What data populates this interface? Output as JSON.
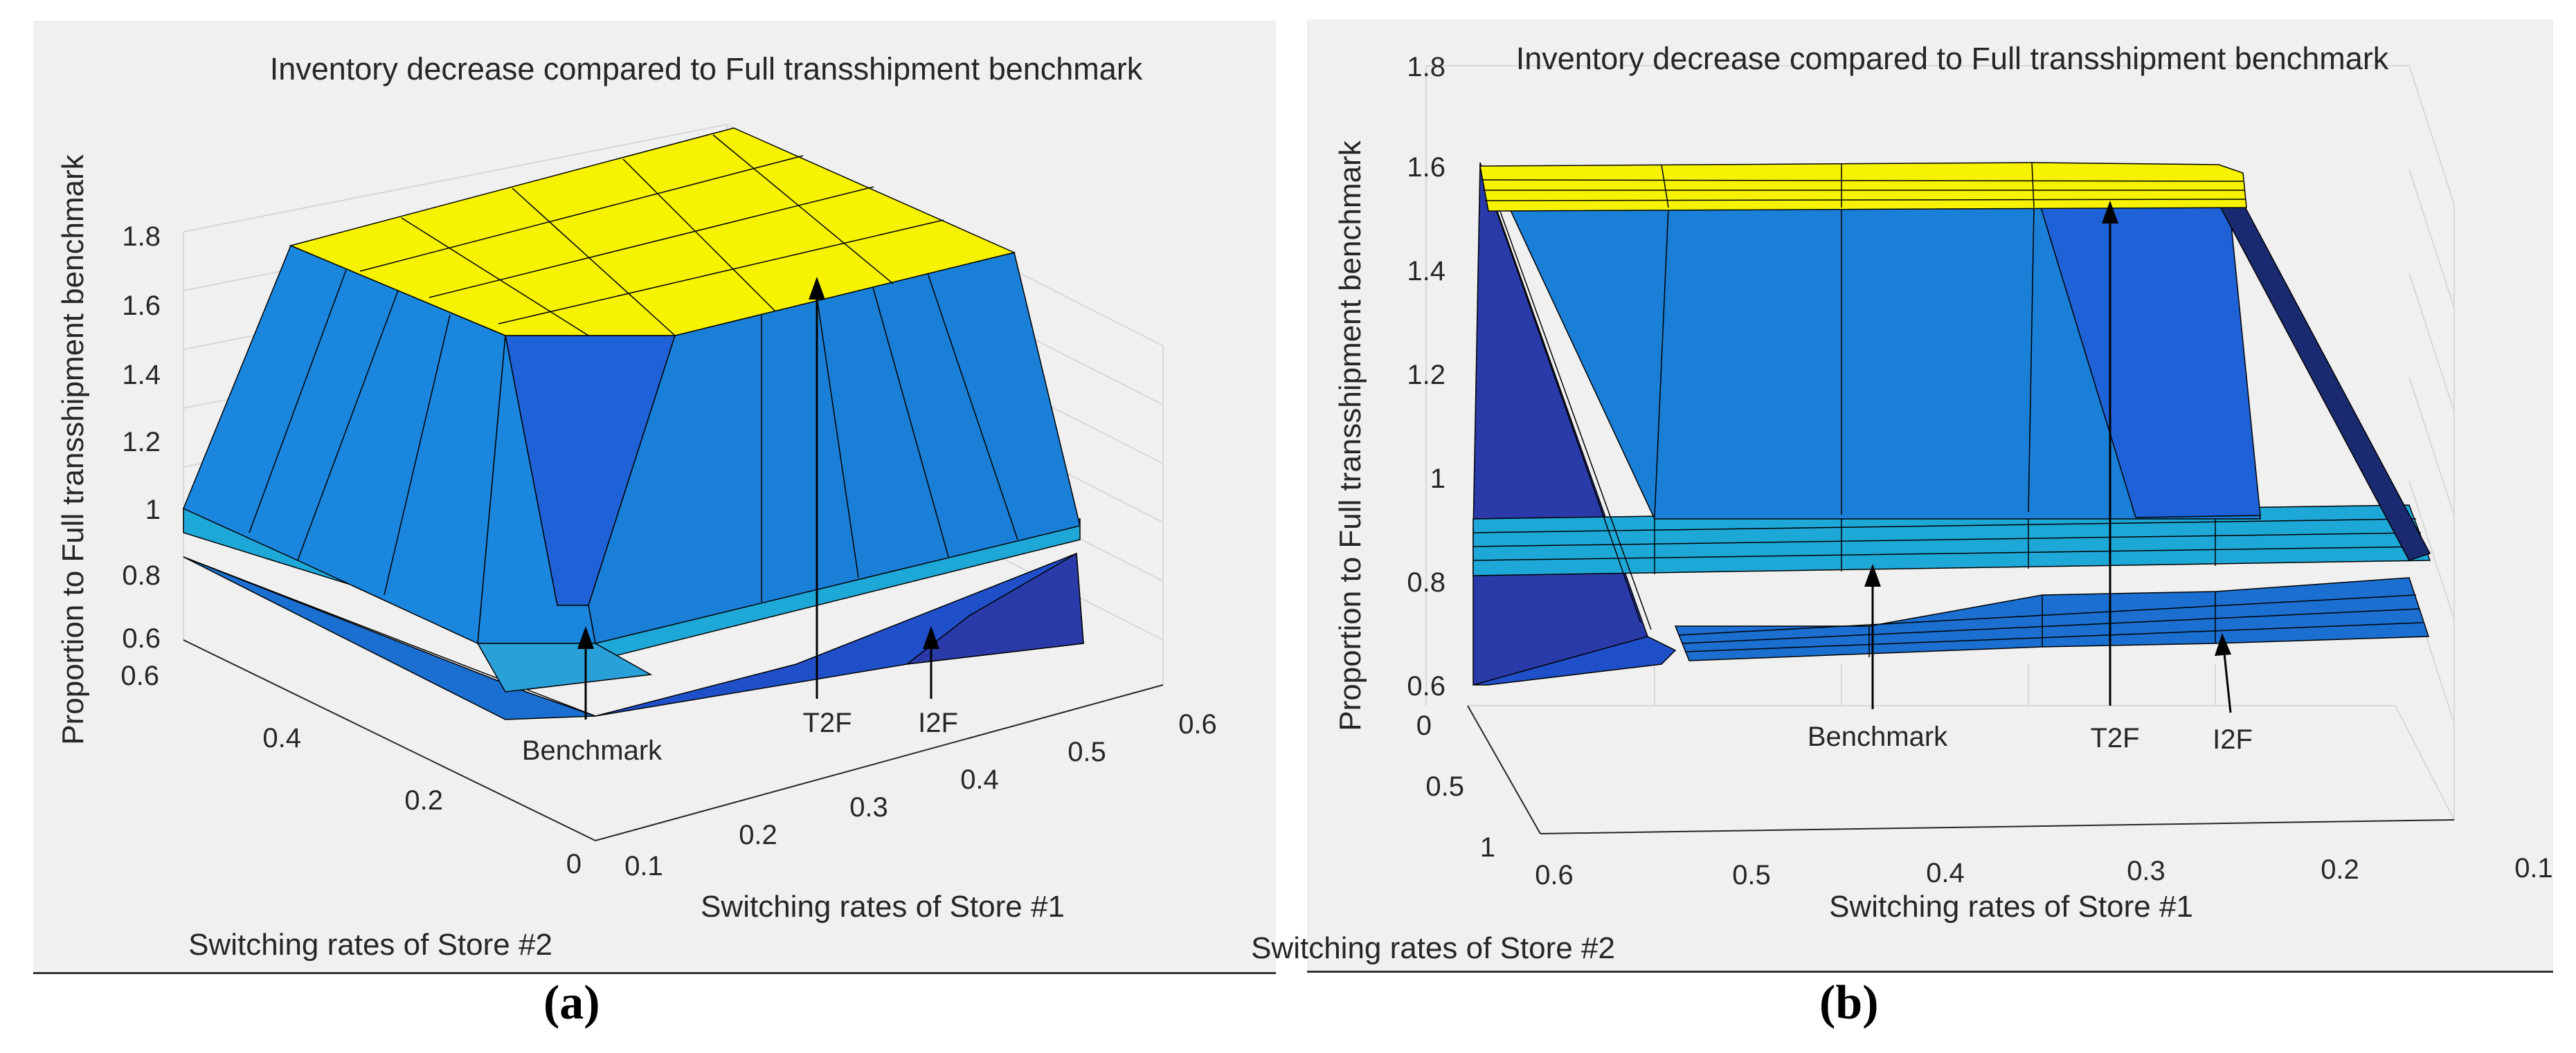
{
  "colors": {
    "yellow": "#f6f200",
    "blue_face": "#1a7fd6",
    "blue_dark": "#1f4fc9",
    "navy": "#2a3aa8",
    "cyan": "#1ea8d8",
    "light_blue": "#2196e0",
    "edge": "#000000",
    "panel_bg": "#f0f0f0"
  },
  "chart_data": [
    {
      "panel": "a",
      "type": "surface3d",
      "title": "Inventory decrease compared to Full transshipment benchmark",
      "xlabel": "Switching rates of Store #1",
      "ylabel": "Switching rates of Store #2",
      "zlabel": "Proportion to Full transshipment benchmark",
      "x_ticks": [
        "0.1",
        "0.2",
        "0.3",
        "0.4",
        "0.5",
        "0.6"
      ],
      "y_ticks": [
        "0",
        "0.2",
        "0.4",
        "0.6"
      ],
      "z_ticks": [
        "0.6",
        "0.8",
        "1",
        "1.2",
        "1.4",
        "1.6",
        "1.8"
      ],
      "zlim": [
        0.6,
        1.8
      ],
      "series": [
        {
          "name": "T2F",
          "plateau": 1.75,
          "base": 0.95
        },
        {
          "name": "Benchmark",
          "level": 0.82
        },
        {
          "name": "I2F",
          "level": 0.8
        }
      ],
      "annotations": [
        "Benchmark",
        "T2F",
        "I2F"
      ],
      "sublabel": "(a)"
    },
    {
      "panel": "b",
      "type": "surface3d",
      "title": "Inventory decrease compared to Full transshipment benchmark",
      "xlabel": "Switching rates of Store #1",
      "ylabel": "Switching rates of Store #2",
      "zlabel": "Proportion to Full transshipment benchmark",
      "x_ticks": [
        "0.6",
        "0.5",
        "0.4",
        "0.3",
        "0.2",
        "0.1"
      ],
      "y_ticks": [
        "0",
        "0.5",
        "1"
      ],
      "z_ticks": [
        "0.6",
        "0.8",
        "1",
        "1.2",
        "1.4",
        "1.6",
        "1.8"
      ],
      "zlim": [
        0.6,
        1.8
      ],
      "series": [
        {
          "name": "T2F",
          "plateau": 1.6
        },
        {
          "name": "Benchmark",
          "level": 0.85
        },
        {
          "name": "I2F",
          "level": 0.7
        }
      ],
      "annotations": [
        "Benchmark",
        "T2F",
        "I2F"
      ],
      "sublabel": "(b)"
    }
  ]
}
